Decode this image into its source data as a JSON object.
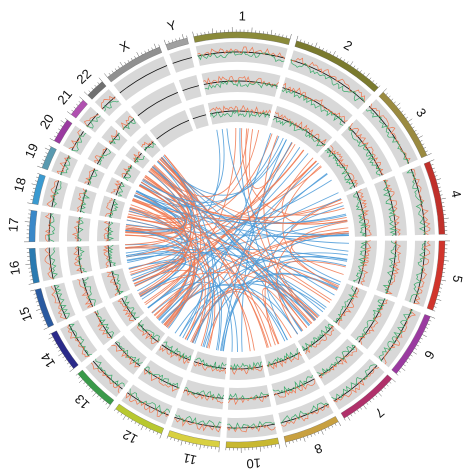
{
  "chromosomes": [
    {
      "name": "1",
      "size": 249,
      "color": "#8a8a3a"
    },
    {
      "name": "2",
      "size": 243,
      "color": "#7a7a2e"
    },
    {
      "name": "3",
      "size": 198,
      "color": "#9a8a40"
    },
    {
      "name": "4",
      "size": 191,
      "color": "#c0302a"
    },
    {
      "name": "5",
      "size": 181,
      "color": "#d0342c"
    },
    {
      "name": "6",
      "size": 171,
      "color": "#9a3aa0"
    },
    {
      "name": "7",
      "size": 159,
      "color": "#b0306a"
    },
    {
      "name": "8",
      "size": 146,
      "color": "#c8a040"
    },
    {
      "name": "10",
      "size": 136,
      "color": "#c8b830"
    },
    {
      "name": "11",
      "size": 135,
      "color": "#d8d040"
    },
    {
      "name": "12",
      "size": 134,
      "color": "#b8c830"
    },
    {
      "name": "13",
      "size": 115,
      "color": "#3a9a4a"
    },
    {
      "name": "14",
      "size": 107,
      "color": "#2a2a8a"
    },
    {
      "name": "15",
      "size": 102,
      "color": "#2a5aa0"
    },
    {
      "name": "16",
      "size": 90,
      "color": "#2a7ab0"
    },
    {
      "name": "17",
      "size": 81,
      "color": "#3a88c8"
    },
    {
      "name": "18",
      "size": 78,
      "color": "#3a9ad0"
    },
    {
      "name": "19",
      "size": 59,
      "color": "#5a9ab0"
    },
    {
      "name": "20",
      "size": 63,
      "color": "#9a3aa0"
    },
    {
      "name": "21",
      "size": 48,
      "color": "#b050b0"
    },
    {
      "name": "22",
      "size": 51,
      "color": "#707070"
    },
    {
      "name": "X",
      "size": 155,
      "color": "#909090"
    },
    {
      "name": "Y",
      "size": 57,
      "color": "#a0a0a0"
    }
  ],
  "link_colors": {
    "intra": "#f07850",
    "inter": "#4a9ad8"
  },
  "track_colors": {
    "cnv_gain": "#f07850",
    "cnv_loss": "#3aaa6a",
    "baseline": "#111111",
    "band": "#d8d8d8"
  }
}
